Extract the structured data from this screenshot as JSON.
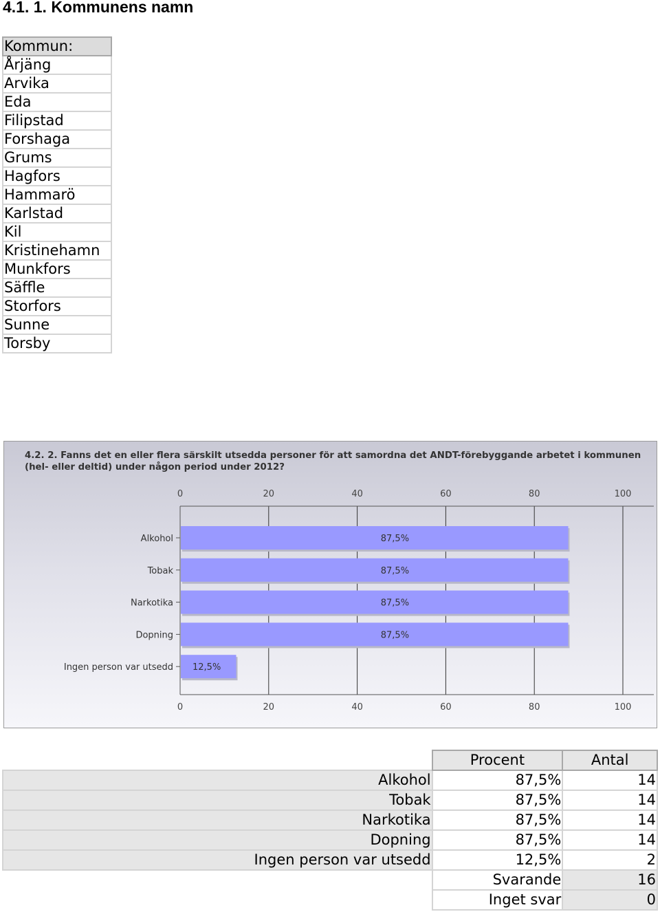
{
  "section_title": "4.1. 1. Kommunens namn",
  "kommun_table": {
    "header": "Kommun:",
    "rows": [
      "Årjäng",
      "Arvika",
      "Eda",
      "Filipstad",
      "Forshaga",
      "Grums",
      "Hagfors",
      "Hammarö",
      "Karlstad",
      "Kil",
      "Kristinehamn",
      "Munkfors",
      "Säffle",
      "Storfors",
      "Sunne",
      "Torsby"
    ]
  },
  "colors": {
    "bar": "#9999ff",
    "bar_shadow": "#b8b8c8",
    "axis": "#555555"
  },
  "chart_data": {
    "type": "bar",
    "orientation": "horizontal",
    "title": "4.2. 2. Fanns det en eller flera särskilt utsedda personer för att samordna det ANDT-förebyggande arbetet i kommunen (hel- eller deltid) under någon period under 2012?",
    "categories": [
      "Alkohol",
      "Tobak",
      "Narkotika",
      "Dopning",
      "Ingen person var utsedd"
    ],
    "values": [
      87.5,
      87.5,
      87.5,
      87.5,
      12.5
    ],
    "value_labels": [
      "87,5%",
      "87,5%",
      "87,5%",
      "87,5%",
      "12,5%"
    ],
    "xlim": [
      0,
      100
    ],
    "ticks": [
      "0",
      "20",
      "40",
      "60",
      "80",
      "100"
    ],
    "axis_position": "top and bottom",
    "grid": true
  },
  "results_table": {
    "headers": [
      "Procent",
      "Antal"
    ],
    "rows": [
      {
        "label": "Alkohol",
        "procent": "87,5%",
        "antal": "14"
      },
      {
        "label": "Tobak",
        "procent": "87,5%",
        "antal": "14"
      },
      {
        "label": "Narkotika",
        "procent": "87,5%",
        "antal": "14"
      },
      {
        "label": "Dopning",
        "procent": "87,5%",
        "antal": "14"
      },
      {
        "label": "Ingen person var utsedd",
        "procent": "12,5%",
        "antal": "2"
      }
    ],
    "summary": [
      {
        "label": "Svarande",
        "value": "16"
      },
      {
        "label": "Inget svar",
        "value": "0"
      }
    ]
  }
}
